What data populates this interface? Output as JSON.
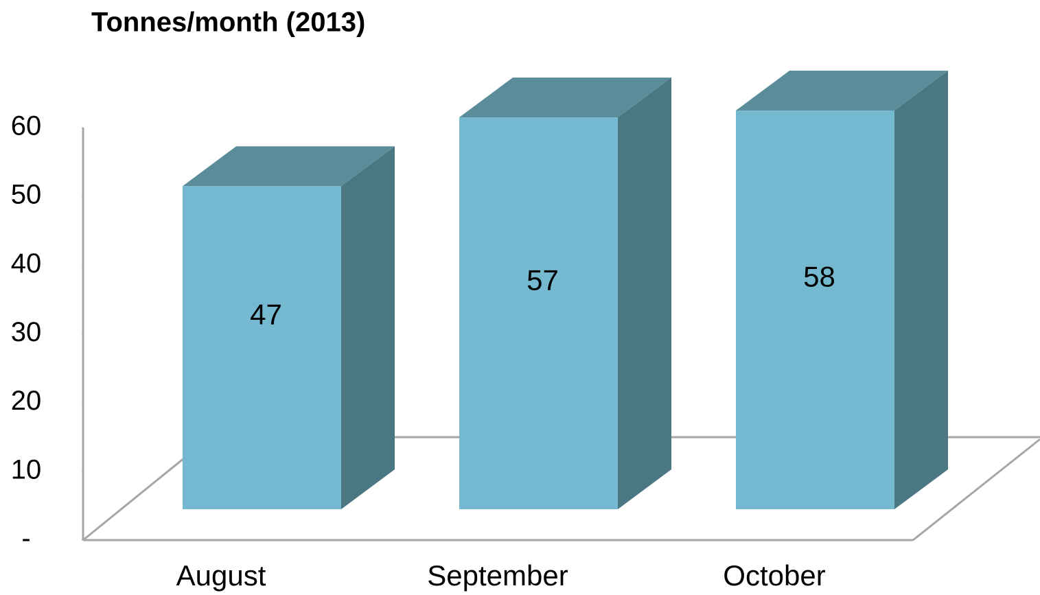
{
  "chart_data": {
    "type": "bar3d",
    "title": "Tonnes/month (2013)",
    "categories": [
      "August",
      "September",
      "October"
    ],
    "values": [
      47,
      57,
      58
    ],
    "color": "#75b9d0",
    "top_color": "#5a8c99",
    "side_color": "#4a7782",
    "ylim": [
      0,
      60
    ],
    "yticks": [
      {
        "value": 0,
        "label": "-"
      },
      10,
      20,
      30,
      40,
      50,
      60
    ]
  }
}
